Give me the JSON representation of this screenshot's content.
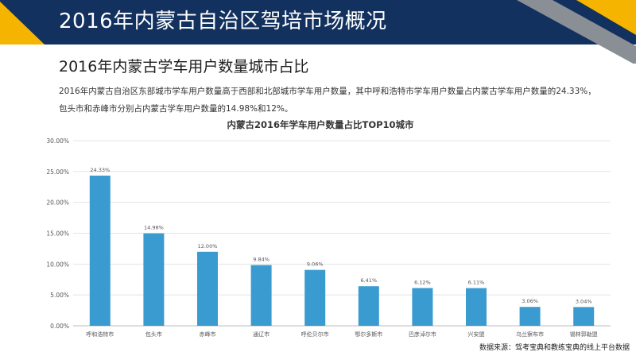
{
  "header": {
    "title": "2016年内蒙古自治区驾培市场概况"
  },
  "section": {
    "subtitle": "2016年内蒙古学车用户数量城市占比"
  },
  "description": {
    "line1": "2016年内蒙古自治区东部城市学车用户数量高于西部和北部城市学车用户数量，其中呼和浩特市学车用户数量占内蒙古学车用户数量的24.33%，",
    "line2": "包头市和赤峰市分别占内蒙古学车用户数量的14.98%和12%。"
  },
  "colors": {
    "header_bg": "#12315e",
    "accent_yellow": "#f5b400",
    "accent_gray": "#8a8f96",
    "bar": "#3a9bd0",
    "grid": "#e4e4e4",
    "axis_text": "#555555"
  },
  "chart_data": {
    "type": "bar",
    "title": "内蒙古2016年学车用户数量占比TOP10城市",
    "categories": [
      "呼和浩特市",
      "包头市",
      "赤峰市",
      "通辽市",
      "呼伦贝尔市",
      "鄂尔多斯市",
      "巴彦淖尔市",
      "兴安盟",
      "乌兰察布市",
      "锡林郭勒盟"
    ],
    "values": [
      24.33,
      14.98,
      12.0,
      9.84,
      9.06,
      6.41,
      6.12,
      6.11,
      3.06,
      3.04
    ],
    "value_labels": [
      "24.33%",
      "14.98%",
      "12.00%",
      "9.84%",
      "9.06%",
      "6.41%",
      "6.12%",
      "6.11%",
      "3.06%",
      "3.04%"
    ],
    "yticks": [
      0,
      5,
      10,
      15,
      20,
      25,
      30
    ],
    "ytick_labels": [
      "0.00%",
      "5.00%",
      "10.00%",
      "15.00%",
      "20.00%",
      "25.00%",
      "30.00%"
    ],
    "ylim": [
      0,
      30
    ],
    "grid": true,
    "legend": "none"
  },
  "footer": {
    "source": "数据来源：驾考宝典和教练宝典的线上平台数据"
  }
}
